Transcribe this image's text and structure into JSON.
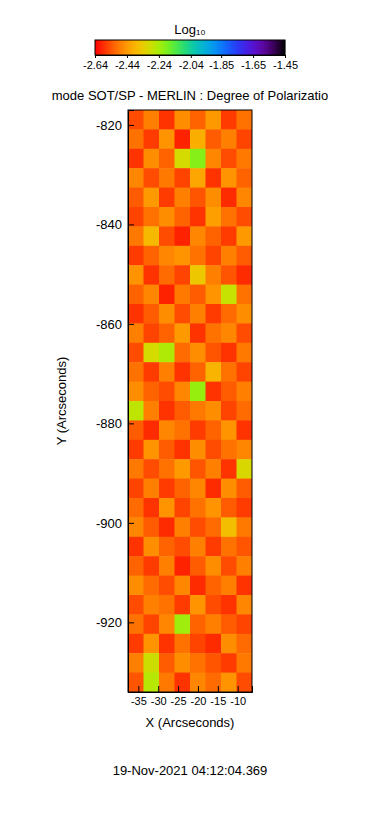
{
  "chart_data": {
    "type": "heatmap",
    "title": "mode SOT/SP - MERLIN : Degree of Polarizatio",
    "colorbar_title": "Log₁₀",
    "x_label": "X (Arcseconds)",
    "y_label": "Y (Arcseconds)",
    "annotation": "19-Nov-2021 04:12:04.369",
    "xlim": [
      -37.6,
      -6.4
    ],
    "ylim": [
      -934,
      -817
    ],
    "xticks": [
      -35,
      -30,
      -25,
      -20,
      -15,
      -10
    ],
    "yticks": [
      -920,
      -900,
      -880,
      -860,
      -840,
      -820
    ],
    "colorbar_range": [
      -2.64,
      -1.45
    ],
    "colorbar_ticks": [
      -2.64,
      -2.44,
      -2.24,
      -2.04,
      -1.85,
      -1.65,
      -1.45
    ],
    "x": [
      -35.65,
      -31.75,
      -27.85,
      -23.95,
      -20.05,
      -16.15,
      -12.25,
      -8.35
    ],
    "y": [
      -818.95,
      -822.85,
      -826.75,
      -830.65,
      -834.55,
      -838.45,
      -842.35,
      -846.25,
      -850.15,
      -854.05,
      -857.95,
      -861.85,
      -865.75,
      -869.65,
      -873.55,
      -877.45,
      -881.35,
      -885.25,
      -889.15,
      -893.05,
      -896.95,
      -900.85,
      -904.75,
      -908.65,
      -912.55,
      -916.45,
      -920.35,
      -924.25,
      -928.15,
      -932.05
    ],
    "z": [
      [
        -2.55,
        -2.48,
        -2.58,
        -2.46,
        -2.52,
        -2.44,
        -2.57,
        -2.5
      ],
      [
        -2.5,
        -2.57,
        -2.45,
        -2.6,
        -2.4,
        -2.53,
        -2.48,
        -2.56
      ],
      [
        -2.58,
        -2.46,
        -2.52,
        -2.3,
        -2.2,
        -2.47,
        -2.55,
        -2.49
      ],
      [
        -2.47,
        -2.55,
        -2.49,
        -2.56,
        -2.42,
        -2.58,
        -2.45,
        -2.52
      ],
      [
        -2.53,
        -2.44,
        -2.57,
        -2.48,
        -2.54,
        -2.46,
        -2.59,
        -2.47
      ],
      [
        -2.56,
        -2.5,
        -2.46,
        -2.52,
        -2.58,
        -2.43,
        -2.5,
        -2.55
      ],
      [
        -2.49,
        -2.38,
        -2.55,
        -2.6,
        -2.47,
        -2.52,
        -2.57,
        -2.44
      ],
      [
        -2.57,
        -2.52,
        -2.47,
        -2.45,
        -2.5,
        -2.56,
        -2.48,
        -2.53
      ],
      [
        -2.45,
        -2.58,
        -2.51,
        -2.56,
        -2.35,
        -2.48,
        -2.54,
        -2.59
      ],
      [
        -2.52,
        -2.47,
        -2.6,
        -2.49,
        -2.53,
        -2.45,
        -2.28,
        -2.5
      ],
      [
        -2.58,
        -2.53,
        -2.46,
        -2.55,
        -2.48,
        -2.57,
        -2.51,
        -2.46
      ],
      [
        -2.48,
        -2.56,
        -2.52,
        -2.44,
        -2.58,
        -2.5,
        -2.47,
        -2.55
      ],
      [
        -2.55,
        -2.3,
        -2.25,
        -2.51,
        -2.46,
        -2.54,
        -2.58,
        -2.49
      ],
      [
        -2.5,
        -2.57,
        -2.48,
        -2.58,
        -2.52,
        -2.39,
        -2.5,
        -2.56
      ],
      [
        -2.46,
        -2.52,
        -2.55,
        -2.47,
        -2.22,
        -2.58,
        -2.53,
        -2.48
      ],
      [
        -2.27,
        -2.48,
        -2.58,
        -2.53,
        -2.49,
        -2.46,
        -2.56,
        -2.51
      ],
      [
        -2.53,
        -2.59,
        -2.47,
        -2.5,
        -2.57,
        -2.52,
        -2.45,
        -2.58
      ],
      [
        -2.57,
        -2.45,
        -2.53,
        -2.58,
        -2.46,
        -2.55,
        -2.5,
        -2.47
      ],
      [
        -2.49,
        -2.55,
        -2.5,
        -2.44,
        -2.54,
        -2.48,
        -2.58,
        -2.31
      ],
      [
        -2.56,
        -2.48,
        -2.57,
        -2.52,
        -2.47,
        -2.59,
        -2.46,
        -2.53
      ],
      [
        -2.51,
        -2.58,
        -2.45,
        -2.56,
        -2.5,
        -2.45,
        -2.53,
        -2.57
      ],
      [
        -2.47,
        -2.53,
        -2.59,
        -2.48,
        -2.55,
        -2.51,
        -2.37,
        -2.49
      ],
      [
        -2.58,
        -2.46,
        -2.52,
        -2.55,
        -2.48,
        -2.57,
        -2.5,
        -2.54
      ],
      [
        -2.52,
        -2.57,
        -2.48,
        -2.6,
        -2.53,
        -2.46,
        -2.55,
        -2.48
      ],
      [
        -2.46,
        -2.51,
        -2.55,
        -2.47,
        -2.59,
        -2.52,
        -2.48,
        -2.58
      ],
      [
        -2.55,
        -2.48,
        -2.5,
        -2.57,
        -2.45,
        -2.55,
        -2.58,
        -2.47
      ],
      [
        -2.5,
        -2.56,
        -2.47,
        -2.23,
        -2.52,
        -2.48,
        -2.53,
        -2.56
      ],
      [
        -2.57,
        -2.45,
        -2.58,
        -2.5,
        -2.56,
        -2.59,
        -2.46,
        -2.51
      ],
      [
        -2.48,
        -2.29,
        -2.53,
        -2.46,
        -2.5,
        -2.54,
        -2.57,
        -2.49
      ],
      [
        -2.54,
        -2.26,
        -2.49,
        -2.58,
        -2.47,
        -2.51,
        -2.45,
        -2.55
      ]
    ]
  }
}
